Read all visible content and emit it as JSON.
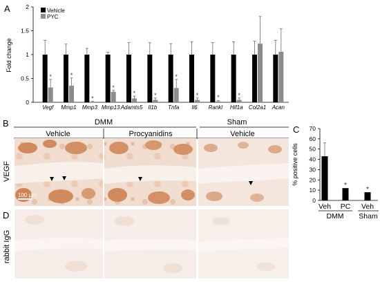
{
  "panels": {
    "A": "A",
    "B": "B",
    "C": "C",
    "D": "D"
  },
  "chartA": {
    "type": "bar",
    "ylabel": "Fold change",
    "ylim": [
      0,
      2
    ],
    "yticks": [
      "0",
      "0.5",
      "1",
      "1.5",
      "2"
    ],
    "legend": [
      "Vehicle",
      "PYC"
    ],
    "legend_position": "top-left",
    "significance_mark": "*",
    "colors": {
      "vehicle": "#000000",
      "pyc": "#8c8c8c"
    }
  },
  "chart_data": [
    {
      "type": "bar",
      "ylabel": "Fold change",
      "ylim": [
        0,
        2
      ],
      "categories": [
        "Vegf",
        "Mmp1",
        "Mmp3",
        "Mmp13",
        "Adamts5",
        "Il1b",
        "Tnfa",
        "Il6",
        "Rankl",
        "Hif1a",
        "Col2a1",
        "Acan"
      ],
      "series": [
        {
          "name": "Vehicle",
          "values": [
            1,
            1,
            1,
            1,
            1,
            1,
            1,
            1,
            1,
            1,
            1,
            1
          ],
          "errors": [
            0.3,
            0.22,
            0.13,
            0.05,
            0.25,
            0.25,
            0.23,
            0.27,
            0.25,
            0.27,
            0.28,
            0.3
          ]
        },
        {
          "name": "PYC",
          "values": [
            0.31,
            0.35,
            0.01,
            0.22,
            0.08,
            0.05,
            0.3,
            0.05,
            0.02,
            0.05,
            1.23,
            1.06
          ]
        },
        {
          "name": "PYC_error",
          "values": [
            0.17,
            0.16,
            0.01,
            0.03,
            0.05,
            0.04,
            0.18,
            0.04,
            0.02,
            0.04,
            0.57,
            0.48
          ]
        }
      ],
      "significant": [
        true,
        true,
        true,
        true,
        true,
        true,
        true,
        true,
        true,
        true,
        false,
        false
      ]
    },
    {
      "type": "bar",
      "ylabel": "% positive cells",
      "ylim": [
        0,
        70
      ],
      "yticks": [
        "0",
        "10",
        "20",
        "30",
        "40",
        "50",
        "60",
        "70"
      ],
      "categories": [
        "Veh",
        "PC",
        "Veh"
      ],
      "groups": [
        "DMM",
        "Sham"
      ],
      "values": [
        43,
        12,
        8
      ],
      "errors": [
        13,
        0,
        0
      ],
      "significant": [
        false,
        true,
        true
      ]
    }
  ],
  "chartC": {
    "ylabel": "% positive cells",
    "yticks": [
      "0",
      "10",
      "20",
      "30",
      "40",
      "50",
      "60",
      "70"
    ],
    "xlabels": [
      "Veh",
      "PC",
      "Veh"
    ],
    "groups": [
      "DMM",
      "Sham"
    ],
    "significance_mark": "*"
  },
  "micrographs": {
    "header_dmm": "DMM",
    "header_sham": "Sham",
    "columns": [
      "Vehicle",
      "Procyanidins",
      "Vehicle"
    ],
    "row_b": "VEGF",
    "row_d": "rabbit IgG",
    "scale_bar": "100 µm",
    "colors": {
      "matrix": "#f3e3d8",
      "stain": "#d4895a",
      "tissue_light": "#f7efea"
    }
  }
}
